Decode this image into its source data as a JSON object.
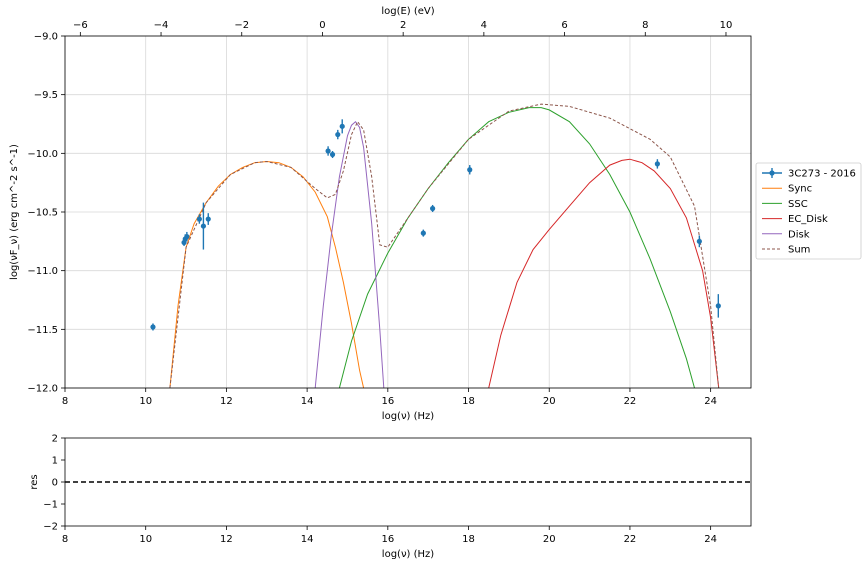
{
  "chart_data": [
    {
      "type": "scatter",
      "xlabel": "log(ν)  (Hz)",
      "ylabel": "log(νF_ν)  (erg cm^-2  s^-1)",
      "top_xlabel": "log(E) (eV)",
      "xlim": [
        8,
        25
      ],
      "ylim": [
        -12,
        -9
      ],
      "top_xlim": [
        -6.38,
        10.62
      ],
      "x_ticks": [
        "8",
        "10",
        "12",
        "14",
        "16",
        "18",
        "20",
        "22",
        "24"
      ],
      "y_ticks": [
        "−12.0",
        "−11.5",
        "−11.0",
        "−10.5",
        "−10.0",
        "−9.5",
        "−9.0"
      ],
      "top_ticks": [
        "−6",
        "−4",
        "−2",
        "0",
        "2",
        "4",
        "6",
        "8",
        "10"
      ],
      "grid": true,
      "legend_position": "outside-right",
      "colors": {
        "data": "#1f77b4",
        "Sync": "#ff7f0e",
        "SSC": "#2ca02c",
        "EC_Disk": "#d62728",
        "Disk": "#9467bd",
        "Sum": "#8c564b"
      },
      "data_series": {
        "name": "3C273 - 2016",
        "points": [
          {
            "x": 10.18,
            "y": -11.48,
            "yerr": 0.03
          },
          {
            "x": 10.95,
            "y": -10.76,
            "yerr": 0.03
          },
          {
            "x": 10.98,
            "y": -10.73,
            "yerr": 0.04
          },
          {
            "x": 11.02,
            "y": -10.71,
            "yerr": 0.04
          },
          {
            "x": 11.33,
            "y": -10.56,
            "yerr": 0.04
          },
          {
            "x": 11.43,
            "y": -10.62,
            "yerr": 0.2
          },
          {
            "x": 11.55,
            "y": -10.56,
            "yerr": 0.05
          },
          {
            "x": 14.52,
            "y": -9.98,
            "yerr": 0.04
          },
          {
            "x": 14.63,
            "y": -10.01,
            "yerr": 0.03
          },
          {
            "x": 14.76,
            "y": -9.84,
            "yerr": 0.04
          },
          {
            "x": 14.87,
            "y": -9.77,
            "yerr": 0.06
          },
          {
            "x": 16.88,
            "y": -10.68,
            "yerr": 0.03
          },
          {
            "x": 17.11,
            "y": -10.47,
            "yerr": 0.03
          },
          {
            "x": 18.03,
            "y": -10.14,
            "yerr": 0.04
          },
          {
            "x": 22.68,
            "y": -10.09,
            "yerr": 0.04
          },
          {
            "x": 23.72,
            "y": -10.75,
            "yerr": 0.05
          },
          {
            "x": 24.19,
            "y": -11.3,
            "yerr": 0.1
          }
        ]
      },
      "series": [
        {
          "name": "Sync",
          "x": [
            10.6,
            10.8,
            11.0,
            11.2,
            11.5,
            11.8,
            12.1,
            12.4,
            12.7,
            13.0,
            13.3,
            13.6,
            13.9,
            14.2,
            14.5,
            14.7,
            14.9,
            15.1,
            15.3,
            15.4
          ],
          "y": [
            -12.0,
            -11.3,
            -10.8,
            -10.6,
            -10.42,
            -10.28,
            -10.18,
            -10.12,
            -10.08,
            -10.07,
            -10.08,
            -10.12,
            -10.2,
            -10.33,
            -10.54,
            -10.8,
            -11.1,
            -11.45,
            -11.85,
            -12.0
          ]
        },
        {
          "name": "SSC",
          "x": [
            14.8,
            15.1,
            15.5,
            16.0,
            16.5,
            17.0,
            17.5,
            18.0,
            18.5,
            19.0,
            19.5,
            19.8,
            20.0,
            20.5,
            21.0,
            21.5,
            22.0,
            22.5,
            23.0,
            23.4,
            23.6
          ],
          "y": [
            -12.0,
            -11.6,
            -11.2,
            -10.85,
            -10.55,
            -10.3,
            -10.08,
            -9.88,
            -9.73,
            -9.65,
            -9.61,
            -9.61,
            -9.63,
            -9.73,
            -9.92,
            -10.18,
            -10.5,
            -10.9,
            -11.35,
            -11.75,
            -12.0
          ]
        },
        {
          "name": "EC_Disk",
          "x": [
            18.5,
            18.8,
            19.2,
            19.6,
            20.0,
            20.5,
            21.0,
            21.5,
            21.8,
            22.0,
            22.3,
            22.6,
            23.0,
            23.4,
            23.8,
            24.0,
            24.2
          ],
          "y": [
            -12.0,
            -11.55,
            -11.1,
            -10.82,
            -10.65,
            -10.45,
            -10.25,
            -10.1,
            -10.06,
            -10.05,
            -10.08,
            -10.15,
            -10.3,
            -10.55,
            -11.0,
            -11.4,
            -12.0
          ]
        },
        {
          "name": "Disk",
          "x": [
            14.2,
            14.4,
            14.6,
            14.8,
            15.0,
            15.1,
            15.2,
            15.3,
            15.4,
            15.6,
            15.8,
            15.9
          ],
          "y": [
            -12.0,
            -11.3,
            -10.7,
            -10.2,
            -9.85,
            -9.76,
            -9.73,
            -9.78,
            -9.95,
            -10.6,
            -11.5,
            -12.0
          ]
        },
        {
          "name": "Sum",
          "x": [
            10.6,
            11.0,
            11.5,
            12.1,
            12.7,
            13.0,
            13.6,
            14.2,
            14.5,
            14.7,
            14.9,
            15.1,
            15.25,
            15.4,
            15.6,
            15.8,
            16.0,
            16.5,
            17.0,
            18.0,
            19.0,
            19.8,
            20.5,
            21.5,
            22.5,
            23.0,
            23.6,
            24.0,
            24.2
          ],
          "y": [
            -12.0,
            -10.8,
            -10.42,
            -10.18,
            -10.08,
            -10.07,
            -10.12,
            -10.3,
            -10.38,
            -10.35,
            -10.15,
            -9.84,
            -9.73,
            -9.8,
            -10.2,
            -10.78,
            -10.8,
            -10.55,
            -10.3,
            -9.88,
            -9.64,
            -9.58,
            -9.6,
            -9.7,
            -9.88,
            -10.03,
            -10.45,
            -11.3,
            -12.0
          ]
        }
      ]
    },
    {
      "type": "scatter",
      "xlabel": "log(ν)  (Hz)",
      "ylabel": "res",
      "xlim": [
        8,
        25
      ],
      "ylim": [
        -2,
        2
      ],
      "x_ticks": [
        "8",
        "10",
        "12",
        "14",
        "16",
        "18",
        "20",
        "22",
        "24"
      ],
      "y_ticks": [
        "−2",
        "−1",
        "0",
        "1",
        "2"
      ],
      "grid": false,
      "reference_line": {
        "y": 0,
        "style": "dashed",
        "color": "#000000"
      }
    }
  ]
}
